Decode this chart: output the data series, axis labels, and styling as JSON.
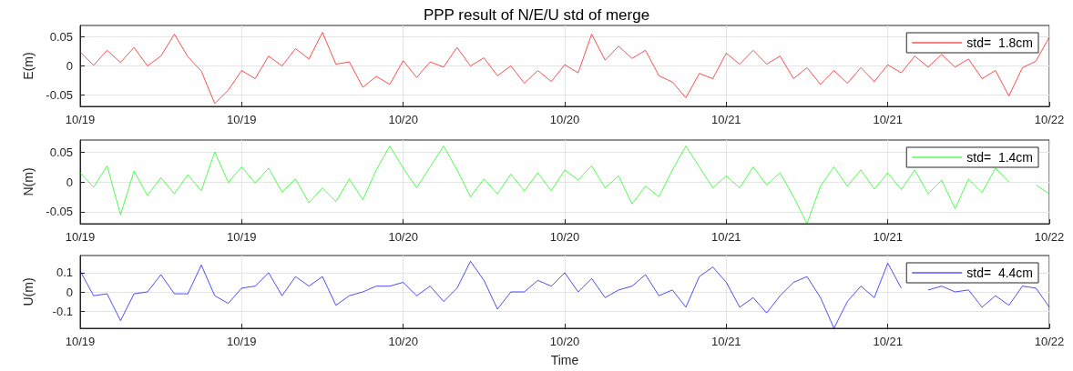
{
  "chart_data": [
    {
      "type": "line",
      "title": "PPP result of N/E/U std of merge",
      "ylabel": "E(m)",
      "legend": "top right",
      "grid": true,
      "categories": [
        "10/19",
        null,
        null,
        null,
        null,
        null,
        null,
        null,
        null,
        null,
        null,
        null,
        "10/19",
        null,
        null,
        null,
        null,
        null,
        null,
        null,
        null,
        null,
        null,
        null,
        "10/20",
        null,
        null,
        null,
        null,
        null,
        null,
        null,
        null,
        null,
        null,
        null,
        "10/20",
        null,
        null,
        null,
        null,
        null,
        null,
        null,
        null,
        null,
        null,
        null,
        "10/21",
        null,
        null,
        null,
        null,
        null,
        null,
        null,
        null,
        null,
        null,
        null,
        "10/21",
        null,
        null,
        null,
        null,
        null,
        null,
        null,
        null,
        null,
        null,
        null,
        "10/22"
      ],
      "ylim": [
        -0.07,
        0.07
      ],
      "yticks": [
        -0.05,
        0,
        0.05
      ],
      "series": [
        {
          "name": "std=  1.8cm",
          "color": "#ff0000",
          "values": [
            0.024,
            0.001,
            0.027,
            0.006,
            0.032,
            0.0,
            0.017,
            0.055,
            0.016,
            -0.009,
            -0.065,
            -0.042,
            -0.008,
            -0.022,
            0.017,
            0.0,
            0.03,
            0.012,
            0.058,
            0.003,
            0.007,
            -0.037,
            -0.018,
            -0.032,
            0.009,
            -0.02,
            0.007,
            -0.002,
            0.032,
            0.0,
            0.014,
            -0.017,
            0.0,
            -0.03,
            -0.008,
            -0.027,
            0.002,
            -0.012,
            0.055,
            0.01,
            0.034,
            0.013,
            0.027,
            -0.017,
            -0.028,
            -0.055,
            -0.013,
            -0.022,
            0.022,
            0.003,
            0.027,
            0.003,
            0.017,
            -0.022,
            -0.003,
            -0.032,
            -0.008,
            -0.03,
            -0.003,
            -0.027,
            0.002,
            -0.012,
            0.017,
            -0.002,
            0.02,
            -0.002,
            0.012,
            -0.022,
            -0.008,
            -0.052,
            -0.003,
            0.008,
            0.05
          ]
        }
      ]
    },
    {
      "type": "line",
      "ylabel": "N(m)",
      "legend": "top right",
      "grid": true,
      "categories": [
        "10/19",
        null,
        null,
        null,
        null,
        null,
        null,
        null,
        null,
        null,
        null,
        null,
        "10/19",
        null,
        null,
        null,
        null,
        null,
        null,
        null,
        null,
        null,
        null,
        null,
        "10/20",
        null,
        null,
        null,
        null,
        null,
        null,
        null,
        null,
        null,
        null,
        null,
        "10/20",
        null,
        null,
        null,
        null,
        null,
        null,
        null,
        null,
        null,
        null,
        null,
        "10/21",
        null,
        null,
        null,
        null,
        null,
        null,
        null,
        null,
        null,
        null,
        null,
        "10/21",
        null,
        null,
        null,
        null,
        null,
        null,
        null,
        null,
        null,
        null,
        null,
        "10/22"
      ],
      "ylim": [
        -0.07,
        0.07
      ],
      "yticks": [
        -0.05,
        0,
        0.05
      ],
      "series": [
        {
          "name": "std=  1.4cm",
          "color": "#00ff00",
          "values": [
            0.015,
            -0.009,
            0.027,
            -0.055,
            0.018,
            -0.023,
            0.007,
            -0.02,
            0.012,
            -0.015,
            0.05,
            -0.001,
            0.025,
            -0.002,
            0.023,
            -0.017,
            0.005,
            -0.035,
            -0.01,
            -0.033,
            0.005,
            -0.03,
            0.02,
            0.06,
            0.023,
            -0.01,
            0.025,
            0.06,
            0.02,
            -0.025,
            0.005,
            -0.02,
            0.013,
            -0.015,
            0.015,
            -0.015,
            0.02,
            0.003,
            0.027,
            -0.01,
            0.01,
            -0.037,
            -0.007,
            -0.025,
            0.02,
            0.06,
            0.025,
            -0.01,
            0.01,
            -0.01,
            0.025,
            -0.005,
            0.015,
            -0.025,
            -0.07,
            -0.007,
            0.025,
            -0.007,
            0.02,
            -0.012,
            0.015,
            -0.013,
            0.02,
            -0.02,
            0.003,
            -0.045,
            0.005,
            -0.018,
            0.023,
            0.0,
            null,
            -0.005,
            -0.02
          ]
        }
      ]
    },
    {
      "type": "line",
      "xlabel": "Time",
      "ylabel": "U(m)",
      "legend": "top right",
      "grid": true,
      "categories": [
        "10/19",
        null,
        null,
        null,
        null,
        null,
        null,
        null,
        null,
        null,
        null,
        null,
        "10/19",
        null,
        null,
        null,
        null,
        null,
        null,
        null,
        null,
        null,
        null,
        null,
        "10/20",
        null,
        null,
        null,
        null,
        null,
        null,
        null,
        null,
        null,
        null,
        null,
        "10/20",
        null,
        null,
        null,
        null,
        null,
        null,
        null,
        null,
        null,
        null,
        null,
        "10/21",
        null,
        null,
        null,
        null,
        null,
        null,
        null,
        null,
        null,
        null,
        null,
        "10/21",
        null,
        null,
        null,
        null,
        null,
        null,
        null,
        null,
        null,
        null,
        null,
        "10/22"
      ],
      "ylim": [
        -0.19,
        0.19
      ],
      "yticks": [
        -0.1,
        0,
        0.1
      ],
      "series": [
        {
          "name": "std=  4.4cm",
          "color": "#0000ff",
          "values": [
            0.11,
            -0.02,
            -0.01,
            -0.15,
            -0.01,
            0.0,
            0.09,
            -0.01,
            -0.01,
            0.14,
            -0.02,
            -0.06,
            0.02,
            0.03,
            0.1,
            -0.02,
            0.08,
            0.03,
            0.08,
            -0.07,
            -0.02,
            0.0,
            0.03,
            0.03,
            0.05,
            -0.02,
            0.03,
            -0.05,
            0.02,
            0.16,
            0.06,
            -0.09,
            0.0,
            0.0,
            0.06,
            0.03,
            0.1,
            0.0,
            0.07,
            -0.03,
            0.01,
            0.03,
            0.09,
            -0.02,
            0.01,
            -0.08,
            0.08,
            0.13,
            0.05,
            -0.08,
            -0.03,
            -0.11,
            -0.02,
            0.05,
            0.08,
            -0.03,
            -0.19,
            -0.05,
            0.03,
            -0.03,
            0.15,
            0.02,
            null,
            0.01,
            0.03,
            0.0,
            0.01,
            -0.08,
            -0.02,
            -0.07,
            0.03,
            0.02,
            -0.08
          ]
        }
      ]
    }
  ]
}
